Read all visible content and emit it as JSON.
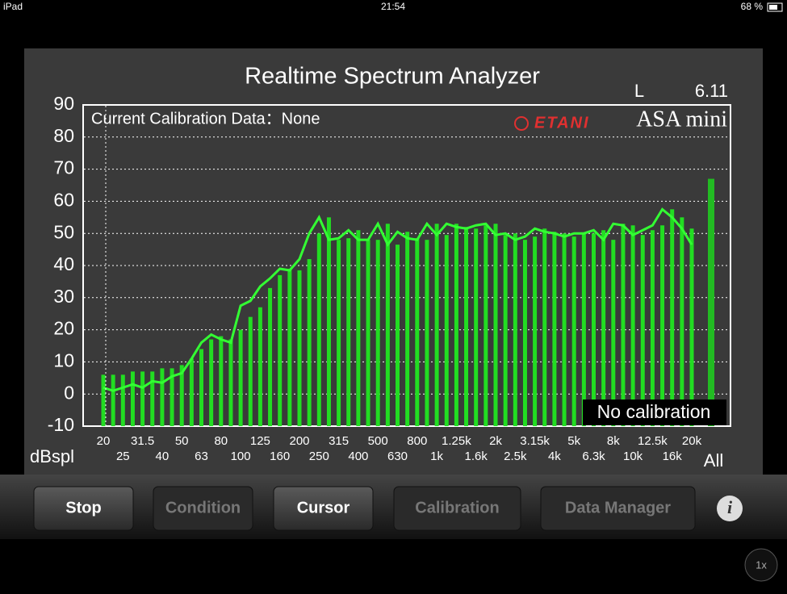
{
  "status_bar": {
    "device": "iPad",
    "time": "21:54",
    "battery": "68 %"
  },
  "chart_data": {
    "type": "spectrum",
    "title": "Realtime Spectrum Analyzer",
    "channel": "L",
    "version": "6.11",
    "calibration_note": "Current Calibration Data：None",
    "brand": "ETANI",
    "product": "ASA mini",
    "status_label": "No calibration",
    "ylabel": "dBspl",
    "categories": [
      "20",
      null,
      "25",
      null,
      "31.5",
      null,
      "40",
      null,
      "50",
      null,
      "63",
      null,
      "80",
      null,
      "100",
      null,
      "125",
      null,
      "160",
      null,
      "200",
      null,
      "250",
      null,
      "315",
      null,
      "400",
      null,
      "500",
      null,
      "630",
      null,
      "800",
      null,
      "1k",
      null,
      "1.25k",
      null,
      "1.6k",
      null,
      "2k",
      null,
      "2.5k",
      null,
      "3.15k",
      null,
      "4k",
      null,
      "5k",
      null,
      "6.3k",
      null,
      "8k",
      null,
      "10k",
      null,
      "12.5k",
      null,
      "16k",
      null,
      "20k"
    ],
    "series": [
      {
        "style": "bar",
        "color": "#22dd22",
        "values": [
          6,
          6,
          6,
          7,
          7,
          7,
          8,
          8,
          9,
          11,
          14,
          17,
          18,
          17,
          20,
          24,
          27,
          33,
          37,
          39,
          38.5,
          42,
          50,
          55,
          48,
          48.5,
          51,
          48,
          48,
          53,
          46.5,
          50.5,
          48.5,
          48,
          53,
          49.5,
          53,
          52,
          51.5,
          52.5,
          53,
          49.5,
          50,
          48,
          49,
          51.5,
          50.5,
          50,
          49,
          50,
          50,
          51,
          48,
          53,
          52.5,
          49.5,
          51,
          52.5,
          57.5,
          55,
          51.5
        ]
      },
      {
        "style": "line",
        "color": "#33ff33",
        "values": [
          2,
          1,
          2,
          3,
          2,
          4,
          3.5,
          5.5,
          6.5,
          11,
          16,
          18.5,
          17,
          16,
          27.5,
          29,
          33.5,
          36,
          39,
          38.5,
          42,
          50,
          55,
          48,
          48.5,
          51,
          48,
          48,
          53,
          46.5,
          50.5,
          48.5,
          48,
          53,
          49.5,
          53,
          52,
          51.5,
          52.5,
          53,
          49.5,
          50,
          48,
          49,
          51.5,
          50.5,
          50,
          49,
          50,
          50,
          51,
          48,
          53,
          52.5,
          49.5,
          51,
          52.5,
          57.5,
          55,
          51.5,
          46.5
        ]
      }
    ],
    "total_label": "All",
    "total_value": 67,
    "total_color": "#22bb22",
    "ylim": [
      -10,
      90
    ],
    "yticks": [
      -10,
      0,
      10,
      20,
      30,
      40,
      50,
      60,
      70,
      80,
      90
    ],
    "grid": true
  },
  "buttons": [
    {
      "label": "Stop",
      "enabled": true
    },
    {
      "label": "Condition",
      "enabled": false
    },
    {
      "label": "Cursor",
      "enabled": true
    },
    {
      "label": "Calibration",
      "enabled": false
    },
    {
      "label": "Data Manager",
      "enabled": false
    }
  ],
  "speed": "1x"
}
